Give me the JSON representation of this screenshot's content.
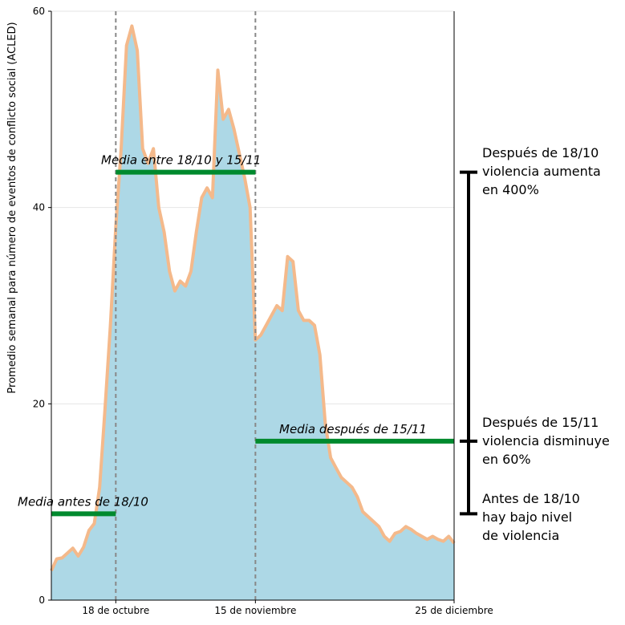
{
  "chart_data": {
    "type": "area",
    "title": "",
    "xlabel": "",
    "ylabel": "Promedio semanal para número de eventos de conflicto social (ACLED)",
    "ylim": [
      0,
      60
    ],
    "yticks": [
      0,
      20,
      40,
      60
    ],
    "xticks": [
      {
        "x": 12,
        "label": "18 de octubre"
      },
      {
        "x": 38,
        "label": "15 de noviembre"
      },
      {
        "x": 75,
        "label": "25 de diciembre"
      }
    ],
    "xlim": [
      0,
      75
    ],
    "grid": "horizontal",
    "colors": {
      "fill": "#add8e6",
      "line": "#f4b98b",
      "mean": "#008a2e",
      "vline": "#888888",
      "bracket": "#000000"
    },
    "vlines": [
      12,
      38
    ],
    "x": [
      0,
      1,
      2,
      3,
      4,
      5,
      6,
      7,
      8,
      9,
      10,
      11,
      12,
      13,
      14,
      15,
      16,
      17,
      18,
      19,
      20,
      21,
      22,
      23,
      24,
      25,
      26,
      27,
      28,
      29,
      30,
      31,
      32,
      33,
      34,
      35,
      36,
      37,
      38,
      39,
      40,
      41,
      42,
      43,
      44,
      45,
      46,
      47,
      48,
      49,
      50,
      51,
      52,
      53,
      54,
      55,
      56,
      57,
      58,
      59,
      60,
      61,
      62,
      63,
      64,
      65,
      66,
      67,
      68,
      69,
      70,
      71,
      72,
      73,
      74,
      75
    ],
    "series": [
      {
        "values": [
          3.0,
          4.2,
          4.3,
          4.8,
          5.3,
          4.5,
          5.4,
          7.1,
          7.8,
          11.5,
          19.5,
          28.0,
          38.0,
          46.0,
          56.5,
          58.5,
          56.0,
          46.0,
          44.5,
          46.0,
          40.0,
          37.5,
          33.5,
          31.5,
          32.5,
          32.0,
          33.5,
          37.5,
          41.0,
          42.0,
          41.0,
          54.0,
          49.0,
          50.0,
          48.0,
          45.5,
          43.0,
          40.0,
          26.5,
          27.0,
          28.0,
          29.0,
          30.0,
          29.5,
          35.0,
          34.5,
          29.5,
          28.5,
          28.5,
          28.0,
          25.0,
          18.0,
          14.5,
          13.5,
          12.5,
          12.0,
          11.5,
          10.5,
          9.0,
          8.5,
          8.0,
          7.5,
          6.5,
          6.0,
          6.8,
          7.0,
          7.5,
          7.2,
          6.8,
          6.5,
          6.2,
          6.5,
          6.2,
          6.0,
          6.5,
          5.8
        ]
      }
    ],
    "means": [
      {
        "label": "Media antes de 18/10",
        "x_start": 0,
        "x_end": 12,
        "value": 8.8
      },
      {
        "label": "Media entre 18/10 y 15/11",
        "x_start": 12,
        "x_end": 38,
        "value": 43.6
      },
      {
        "label": "Media después de 15/11",
        "x_start": 38,
        "x_end": 75,
        "value": 16.2
      }
    ],
    "annotations": [
      {
        "lines": [
          "Después de 18/10",
          "violencia aumenta",
          "en 400%"
        ]
      },
      {
        "lines": [
          "Después de 15/11",
          "violencia disminuye",
          "en 60%"
        ]
      },
      {
        "lines": [
          "Antes de 18/10",
          "hay bajo nivel",
          "de violencia"
        ]
      }
    ]
  }
}
